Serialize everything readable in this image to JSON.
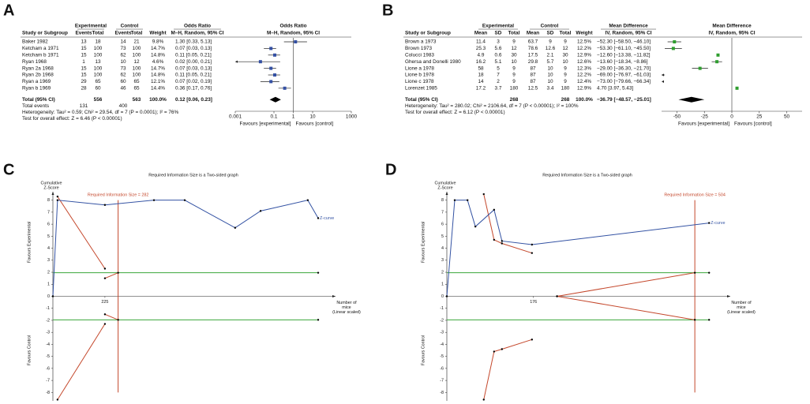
{
  "panels": [
    {
      "label": "A",
      "type": "forest",
      "groups": [
        "Experimental",
        "Control",
        "Odds Ratio"
      ],
      "columns": [
        "Study or Subgroup",
        "Events",
        "Total",
        "Events",
        "Total",
        "Weight",
        "M–H, Random, 95% CI"
      ],
      "plot_title": "Odds Ratio",
      "plot_subtitle": "M–H, Random, 95% CI",
      "marker_color": "#3450a3",
      "rows": [
        {
          "study": "Baker 1982",
          "exp_events": 13,
          "exp_total": 18,
          "ctrl_events": 14,
          "ctrl_total": 21,
          "weight": "9.8%",
          "effect": "1.30 [0.33, 5.13]",
          "estimate": 1.3,
          "ci": [
            0.33,
            5.13
          ]
        },
        {
          "study": "Ketcham a 1971",
          "exp_events": 15,
          "exp_total": 100,
          "ctrl_events": 73,
          "ctrl_total": 100,
          "weight": "14.7%",
          "effect": "0.07 [0.03, 0.13]",
          "estimate": 0.07,
          "ci": [
            0.03,
            0.13
          ]
        },
        {
          "study": "Ketcham b 1971",
          "exp_events": 15,
          "exp_total": 100,
          "ctrl_events": 62,
          "ctrl_total": 100,
          "weight": "14.8%",
          "effect": "0.11 [0.05, 0.21]",
          "estimate": 0.11,
          "ci": [
            0.05,
            0.21
          ]
        },
        {
          "study": "Ryan 1968",
          "exp_events": 1,
          "exp_total": 13,
          "ctrl_events": 10,
          "ctrl_total": 12,
          "weight": "4.6%",
          "effect": "0.02 [0.00, 0.21]",
          "estimate": 0.02,
          "ci": [
            0,
            0.21
          ]
        },
        {
          "study": "Ryan 2a 1968",
          "exp_events": 15,
          "exp_total": 100,
          "ctrl_events": 73,
          "ctrl_total": 100,
          "weight": "14.7%",
          "effect": "0.07 [0.03, 0.13]",
          "estimate": 0.07,
          "ci": [
            0.03,
            0.13
          ]
        },
        {
          "study": "Ryan 2b 1968",
          "exp_events": 15,
          "exp_total": 100,
          "ctrl_events": 62,
          "ctrl_total": 100,
          "weight": "14.8%",
          "effect": "0.11 [0.05, 0.21]",
          "estimate": 0.11,
          "ci": [
            0.05,
            0.21
          ]
        },
        {
          "study": "Ryan a 1969",
          "exp_events": 29,
          "exp_total": 65,
          "ctrl_events": 60,
          "ctrl_total": 65,
          "weight": "12.1%",
          "effect": "0.07 [0.02, 0.19]",
          "estimate": 0.07,
          "ci": [
            0.02,
            0.19
          ]
        },
        {
          "study": "Ryan b 1969",
          "exp_events": 28,
          "exp_total": 60,
          "ctrl_events": 46,
          "ctrl_total": 65,
          "weight": "14.4%",
          "effect": "0.36 [0.17, 0.76]",
          "estimate": 0.36,
          "ci": [
            0.17,
            0.76
          ]
        }
      ],
      "total": {
        "study": "Total (95% CI)",
        "exp_total": 556,
        "ctrl_total": 563,
        "weight": "100.0%",
        "effect": "0.12 [0.06, 0.23]",
        "estimate": 0.12,
        "ci": [
          0.06,
          0.23
        ]
      },
      "total_events": {
        "study": "Total events",
        "exp_events": 131,
        "ctrl_events": 400
      },
      "notes": [
        "Heterogeneity: Tau² = 0.59; Chi² = 29.54, df = 7 (P = 0.0001); I² = 76%",
        "Test for overall effect: Z = 6.46 (P < 0.00001)"
      ],
      "log": true,
      "xlim": [
        0.001,
        1000
      ],
      "xticks": [
        0.001,
        0.1,
        1,
        10,
        1000
      ],
      "null_line": 1,
      "favours": [
        "Favours [experimental]",
        "Favours [control]"
      ]
    },
    {
      "label": "B",
      "type": "forest",
      "groups": [
        "Experimental",
        "Control",
        "Mean Difference"
      ],
      "columns": [
        "Study or Subgroup",
        "Mean",
        "SD",
        "Total",
        "Mean",
        "SD",
        "Total",
        "Weight",
        "IV, Random, 95% CI"
      ],
      "plot_title": "Mean Difference",
      "plot_subtitle": "IV, Random, 95% CI",
      "marker_color": "#2f9e2f",
      "rows": [
        {
          "study": "Brown a 1973",
          "exp_mean": 11.4,
          "exp_sd": 3,
          "exp_total": 9,
          "ctrl_mean": 63.7,
          "ctrl_sd": 9,
          "ctrl_total": 9,
          "weight": "12.5%",
          "effect": "−52.30 [−58.50, −46.10]",
          "estimate": -52.3,
          "ci": [
            -58.5,
            -46.1
          ]
        },
        {
          "study": "Brown 1973",
          "exp_mean": 25.3,
          "exp_sd": 5.6,
          "exp_total": 12,
          "ctrl_mean": 78.6,
          "ctrl_sd": 12.6,
          "ctrl_total": 12,
          "weight": "12.2%",
          "effect": "−53.30 [−61.10, −45.50]",
          "estimate": -53.3,
          "ci": [
            -61.1,
            -45.5
          ]
        },
        {
          "study": "Colucci 1983",
          "exp_mean": 4.9,
          "exp_sd": 0.6,
          "exp_total": 30,
          "ctrl_mean": 17.5,
          "ctrl_sd": 2.1,
          "ctrl_total": 30,
          "weight": "12.9%",
          "effect": "−12.60 [−13.38, −11.82]",
          "estimate": -12.6,
          "ci": [
            -13.38,
            -11.82
          ]
        },
        {
          "study": "Ghersa and Donelli 1980",
          "exp_mean": 16.2,
          "exp_sd": 5.1,
          "exp_total": 10,
          "ctrl_mean": 29.8,
          "ctrl_sd": 5.7,
          "ctrl_total": 10,
          "weight": "12.6%",
          "effect": "−13.60 [−18.34, −8.86]",
          "estimate": -13.6,
          "ci": [
            -18.34,
            -8.86
          ]
        },
        {
          "study": "Lione a 1978",
          "exp_mean": 58,
          "exp_sd": 5,
          "exp_total": 9,
          "ctrl_mean": 87,
          "ctrl_sd": 10,
          "ctrl_total": 9,
          "weight": "12.3%",
          "effect": "−29.00 [−36.30, −21.70]",
          "estimate": -29,
          "ci": [
            -36.3,
            -21.7
          ]
        },
        {
          "study": "Lione b 1978",
          "exp_mean": 18,
          "exp_sd": 7,
          "exp_total": 9,
          "ctrl_mean": 87,
          "ctrl_sd": 10,
          "ctrl_total": 9,
          "weight": "12.2%",
          "effect": "−69.00 [−76.97, −61.03]",
          "estimate": -69,
          "ci": [
            -76.97,
            -61.03
          ]
        },
        {
          "study": "Lione c 1978",
          "exp_mean": 14,
          "exp_sd": 2,
          "exp_total": 9,
          "ctrl_mean": 87,
          "ctrl_sd": 10,
          "ctrl_total": 9,
          "weight": "12.4%",
          "effect": "−73.00 [−79.66, −66.34]",
          "estimate": -73,
          "ci": [
            -79.66,
            -66.34
          ]
        },
        {
          "study": "Lorenzet 1985",
          "exp_mean": 17.2,
          "exp_sd": 3.7,
          "exp_total": 180,
          "ctrl_mean": 12.5,
          "ctrl_sd": 3.4,
          "ctrl_total": 180,
          "weight": "12.9%",
          "effect": "4.70 [3.97, 5.43]",
          "estimate": 4.7,
          "ci": [
            3.97,
            5.43
          ]
        }
      ],
      "total": {
        "study": "Total (95% CI)",
        "exp_total": 268,
        "ctrl_total": 268,
        "weight": "100.0%",
        "effect": "−36.79 [−48.57, −25.01]",
        "estimate": -36.79,
        "ci": [
          -48.57,
          -25.01
        ]
      },
      "notes": [
        "Heterogeneity: Tau² = 280.02; Chi² = 2106.64, df = 7 (P < 0.00001); I² = 100%",
        "Test for overall effect: Z = 6.12 (P < 0.00001)"
      ],
      "log": false,
      "xlim": [
        -64,
        64
      ],
      "xticks": [
        -50,
        -25,
        0,
        25,
        50
      ],
      "null_line": 0,
      "favours": [
        "Favours [experimental]",
        "Favours [control]"
      ]
    },
    {
      "label": "C",
      "type": "tsa",
      "title": "Required Information Size is a Two-sided graph",
      "ylabel": [
        "Cumulative",
        "Z-Score"
      ],
      "xlabel": [
        "Number of",
        "mice",
        "(Linear scaled)"
      ],
      "favours": [
        "Favours Experimental",
        "Favours Control"
      ],
      "ris": 282,
      "ris_label": "Required Information Size = 282",
      "xlim": [
        0,
        1222
      ],
      "xticks": [
        225
      ],
      "ylim": [
        -8.7,
        8.7
      ],
      "yticks": [
        -8,
        -7,
        -6,
        -5,
        -4,
        -3,
        -2,
        -1,
        0,
        1,
        2,
        3,
        4,
        5,
        6,
        7,
        8
      ],
      "zcurve": {
        "name": "Z-curve",
        "color": "#3352a3",
        "x": [
          0,
          20,
          225,
          437,
          570,
          788,
          898,
          1102,
          1147
        ],
        "y": [
          0,
          8,
          7.6,
          8,
          8,
          5.7,
          7.1,
          8,
          6.5
        ]
      },
      "boundary_color": "#c4472b",
      "boundaries": [
        {
          "x": [
            20,
            225
          ],
          "y": [
            8.3,
            2.3
          ]
        },
        {
          "x": [
            225,
            282
          ],
          "y": [
            1.5,
            1.96
          ]
        },
        {
          "x": [
            20,
            225
          ],
          "y": [
            -8.6,
            -2.3
          ]
        },
        {
          "x": [
            225,
            282
          ],
          "y": [
            -1.5,
            -1.96
          ]
        }
      ],
      "threshold_color": "#3aa63a",
      "thresholds": [
        1.96,
        -1.96
      ]
    },
    {
      "label": "D",
      "type": "tsa",
      "title": "Required Information Size is a Two-sided graph",
      "ylabel": [
        "Cumulative",
        "Z-Score"
      ],
      "xlabel": [
        "Number of",
        "mice",
        "(Linear scaled)"
      ],
      "favours": [
        "Favours Experimental",
        "Favours Control"
      ],
      "ris": 504,
      "ris_label": "Required Information Size = 504",
      "xlim": [
        0,
        576
      ],
      "xticks": [
        176
      ],
      "ylim": [
        -8.7,
        8.7
      ],
      "yticks": [
        -8,
        -7,
        -6,
        -5,
        -4,
        -3,
        -2,
        -1,
        0,
        1,
        2,
        3,
        4,
        5,
        6,
        7,
        8
      ],
      "zcurve": {
        "name": "Z-curve",
        "color": "#3352a3",
        "x": [
          0,
          16,
          42,
          58,
          96,
          112,
          173,
          533
        ],
        "y": [
          0,
          8,
          8,
          5.8,
          7.2,
          4.6,
          4.3,
          6.1
        ]
      },
      "boundary_color": "#c4472b",
      "boundaries": [
        {
          "x": [
            75,
            96,
            112,
            173
          ],
          "y": [
            8.5,
            4.7,
            4.4,
            3.6
          ]
        },
        {
          "x": [
            224,
            504
          ],
          "y": [
            0,
            1.96
          ]
        },
        {
          "x": [
            224,
            504
          ],
          "y": [
            0,
            -1.96
          ]
        },
        {
          "x": [
            75,
            96,
            112,
            173
          ],
          "y": [
            -8.6,
            -4.6,
            -4.4,
            -3.6
          ]
        }
      ],
      "threshold_color": "#3aa63a",
      "thresholds": [
        1.96,
        -1.96
      ]
    }
  ]
}
